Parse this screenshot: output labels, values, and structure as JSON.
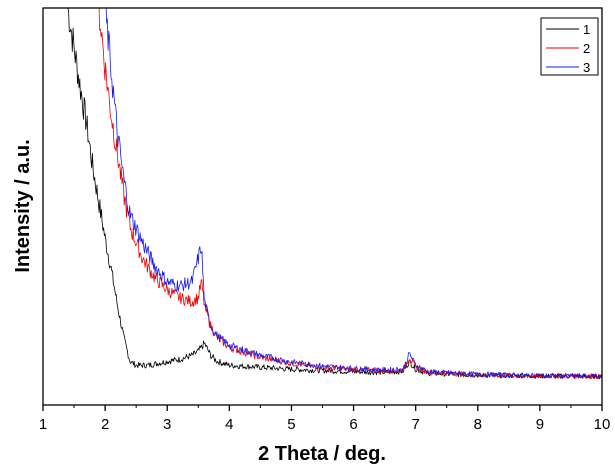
{
  "chart_data": {
    "type": "line",
    "title": "",
    "xlabel": "2 Theta / deg.",
    "ylabel": "Intensity / a.u.",
    "xlim": [
      1,
      10
    ],
    "ylim": [
      0,
      100
    ],
    "x_ticks": [
      1,
      2,
      3,
      4,
      5,
      6,
      7,
      8,
      9,
      10
    ],
    "y_ticks_shown": false,
    "grid": false,
    "legend_position": "top-right",
    "series": [
      {
        "name": "1",
        "color": "#000000",
        "points": [
          [
            1.4,
            100
          ],
          [
            1.5,
            90
          ],
          [
            1.6,
            80
          ],
          [
            1.7,
            71
          ],
          [
            1.8,
            60
          ],
          [
            1.9,
            51
          ],
          [
            2.0,
            42
          ],
          [
            2.1,
            34
          ],
          [
            2.2,
            25
          ],
          [
            2.3,
            17
          ],
          [
            2.4,
            11
          ],
          [
            2.5,
            10
          ],
          [
            2.7,
            10
          ],
          [
            3.0,
            11
          ],
          [
            3.2,
            11.5
          ],
          [
            3.4,
            12.5
          ],
          [
            3.5,
            13.5
          ],
          [
            3.6,
            15.5
          ],
          [
            3.7,
            12.5
          ],
          [
            3.8,
            11
          ],
          [
            4.0,
            10
          ],
          [
            4.5,
            9.5
          ],
          [
            5.0,
            9
          ],
          [
            5.5,
            8.7
          ],
          [
            6.0,
            8.4
          ],
          [
            6.5,
            8.2
          ],
          [
            6.8,
            8.5
          ],
          [
            6.9,
            11
          ],
          [
            7.0,
            9
          ],
          [
            7.2,
            8
          ],
          [
            8.0,
            7.5
          ],
          [
            9.0,
            7.3
          ],
          [
            10.0,
            7.2
          ]
        ]
      },
      {
        "name": "2",
        "color": "#ee0000",
        "points": [
          [
            1.9,
            100
          ],
          [
            2.0,
            85
          ],
          [
            2.1,
            73
          ],
          [
            2.2,
            63
          ],
          [
            2.3,
            53
          ],
          [
            2.4,
            45
          ],
          [
            2.6,
            37
          ],
          [
            2.8,
            32
          ],
          [
            3.0,
            29
          ],
          [
            3.2,
            27
          ],
          [
            3.4,
            26
          ],
          [
            3.5,
            27
          ],
          [
            3.55,
            31
          ],
          [
            3.6,
            25
          ],
          [
            3.7,
            20
          ],
          [
            3.8,
            17
          ],
          [
            4.0,
            14.5
          ],
          [
            4.5,
            12
          ],
          [
            5.0,
            10.5
          ],
          [
            5.5,
            9.5
          ],
          [
            6.0,
            9
          ],
          [
            6.5,
            8.6
          ],
          [
            6.8,
            8.8
          ],
          [
            6.9,
            12
          ],
          [
            7.0,
            9.5
          ],
          [
            7.2,
            8.3
          ],
          [
            8.0,
            7.6
          ],
          [
            9.0,
            7.3
          ],
          [
            10.0,
            7.2
          ]
        ]
      },
      {
        "name": "3",
        "color": "#1a1aee",
        "points": [
          [
            2.0,
            100
          ],
          [
            2.1,
            84
          ],
          [
            2.2,
            68
          ],
          [
            2.3,
            57
          ],
          [
            2.4,
            48
          ],
          [
            2.6,
            41
          ],
          [
            2.8,
            35
          ],
          [
            3.0,
            31
          ],
          [
            3.2,
            30
          ],
          [
            3.4,
            31
          ],
          [
            3.5,
            37
          ],
          [
            3.55,
            40
          ],
          [
            3.6,
            26
          ],
          [
            3.7,
            20
          ],
          [
            3.8,
            17.5
          ],
          [
            4.0,
            15
          ],
          [
            4.5,
            12.5
          ],
          [
            5.0,
            10.8
          ],
          [
            5.5,
            9.8
          ],
          [
            6.0,
            9.2
          ],
          [
            6.5,
            8.8
          ],
          [
            6.8,
            9
          ],
          [
            6.9,
            13
          ],
          [
            7.0,
            10
          ],
          [
            7.2,
            8.4
          ],
          [
            8.0,
            7.7
          ],
          [
            9.0,
            7.4
          ],
          [
            10.0,
            7.3
          ]
        ]
      }
    ]
  }
}
